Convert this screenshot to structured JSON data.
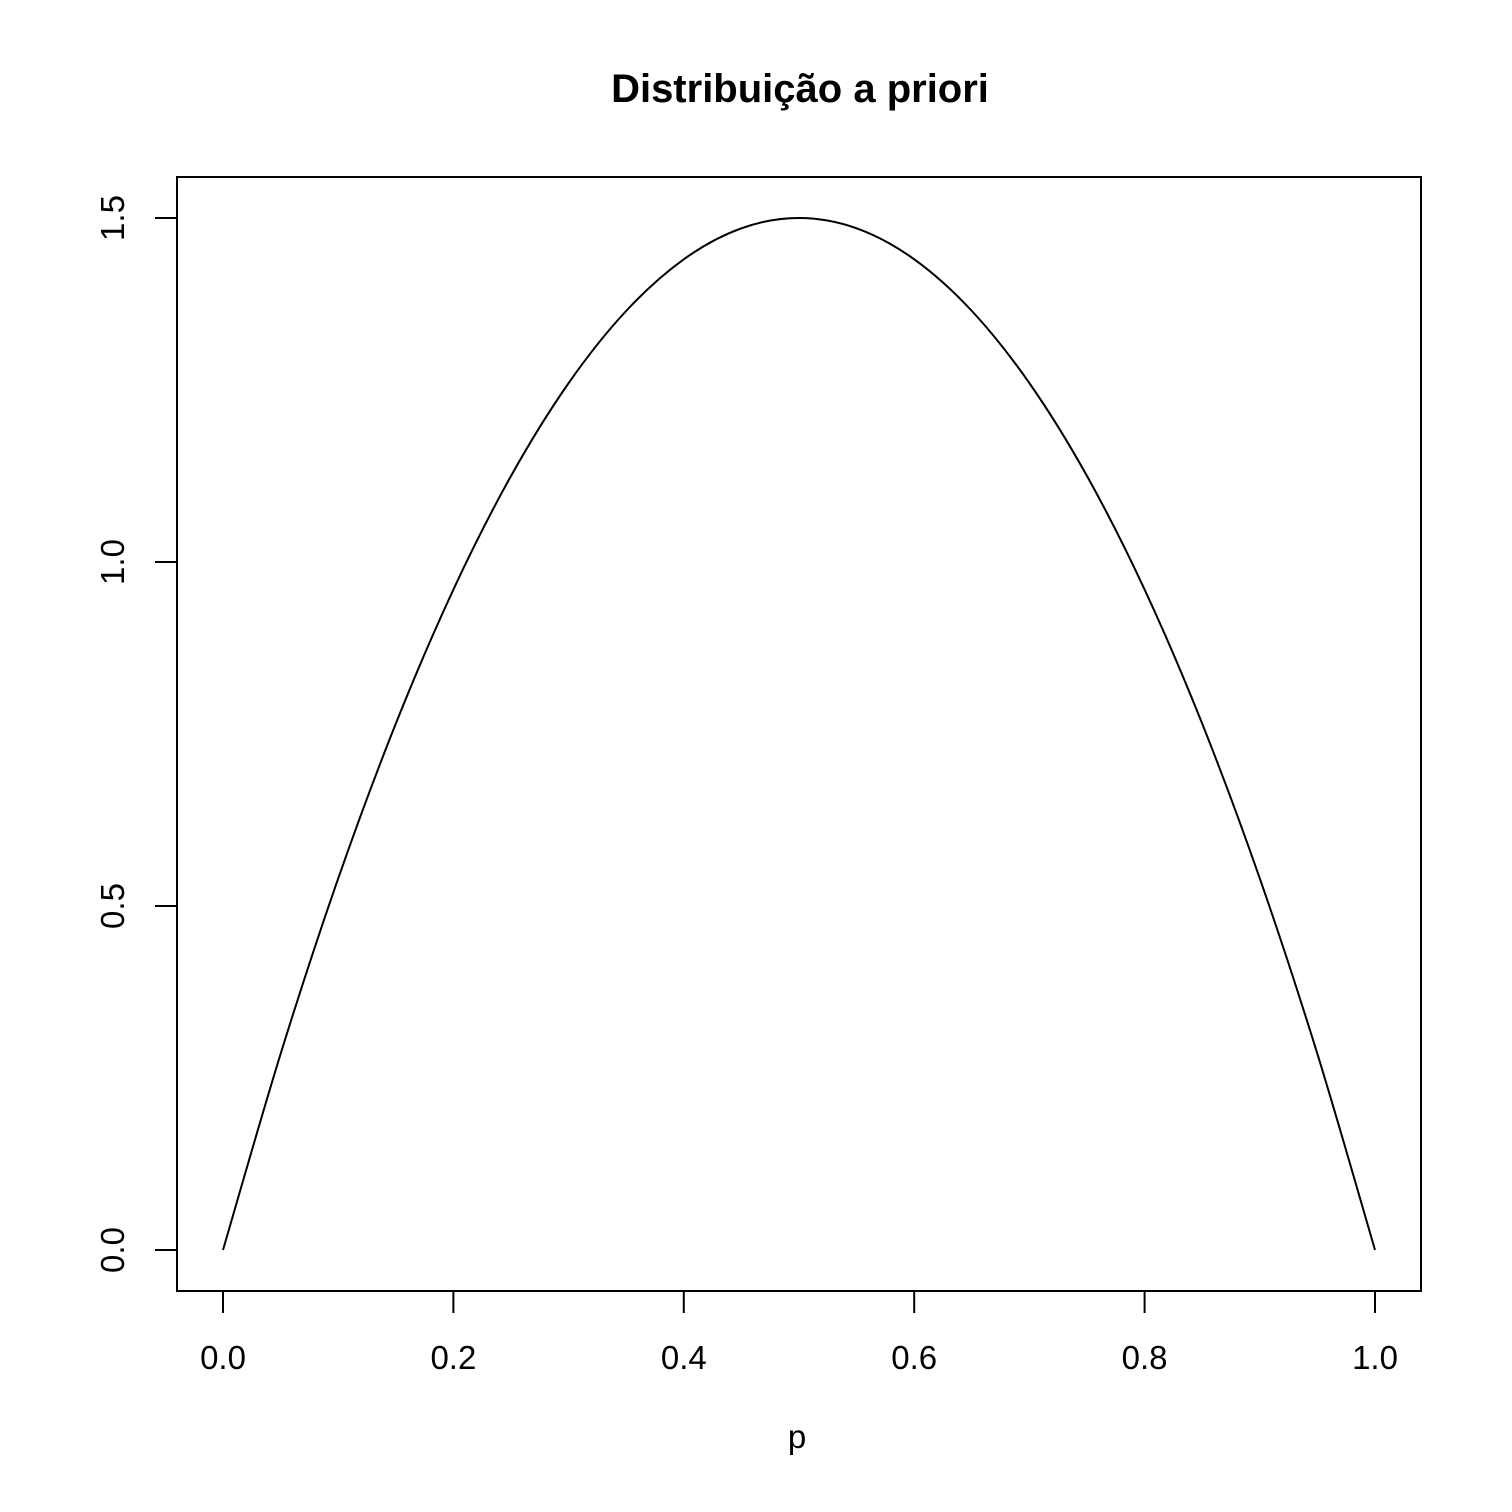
{
  "chart_data": {
    "type": "line",
    "title": "Distribuição a priori",
    "xlabel": "p",
    "ylabel": "",
    "xlim": [
      0,
      1
    ],
    "ylim": [
      0,
      1.5
    ],
    "xticks": [
      0.0,
      0.2,
      0.4,
      0.6,
      0.8,
      1.0
    ],
    "xtick_labels": [
      "0.0",
      "0.2",
      "0.4",
      "0.6",
      "0.8",
      "1.0"
    ],
    "yticks": [
      0.0,
      0.5,
      1.0,
      1.5
    ],
    "ytick_labels": [
      "0.0",
      "0.5",
      "1.0",
      "1.5"
    ],
    "grid": false,
    "legend": "none",
    "line_color": "#000000",
    "series": [
      {
        "x": [
          0.0,
          0.05,
          0.1,
          0.15,
          0.2,
          0.25,
          0.3,
          0.35,
          0.4,
          0.45,
          0.5,
          0.55,
          0.6,
          0.65,
          0.7,
          0.75,
          0.8,
          0.85,
          0.9,
          0.95,
          1.0
        ],
        "y": [
          0.0,
          0.285,
          0.54,
          0.765,
          0.96,
          1.125,
          1.26,
          1.365,
          1.44,
          1.485,
          1.5,
          1.485,
          1.44,
          1.365,
          1.26,
          1.125,
          0.96,
          0.765,
          0.54,
          0.285,
          0.0
        ]
      }
    ]
  }
}
